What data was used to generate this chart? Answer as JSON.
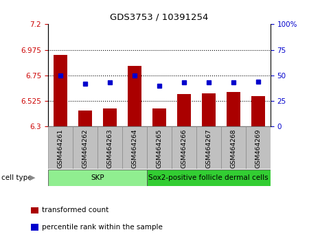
{
  "title": "GDS3753 / 10391254",
  "samples": [
    "GSM464261",
    "GSM464262",
    "GSM464263",
    "GSM464264",
    "GSM464265",
    "GSM464266",
    "GSM464267",
    "GSM464268",
    "GSM464269"
  ],
  "bar_values": [
    6.93,
    6.44,
    6.46,
    6.835,
    6.455,
    6.585,
    6.59,
    6.605,
    6.565
  ],
  "percentile_values": [
    50,
    42,
    43,
    50,
    40,
    43,
    43,
    43,
    44
  ],
  "left_ylim": [
    6.3,
    7.2
  ],
  "left_yticks": [
    6.3,
    6.525,
    6.75,
    6.975,
    7.2
  ],
  "left_ytick_labels": [
    "6.3",
    "6.525",
    "6.75",
    "6.975",
    "7.2"
  ],
  "right_ylim": [
    0,
    100
  ],
  "right_yticks": [
    0,
    25,
    50,
    75,
    100
  ],
  "right_ytick_labels": [
    "0",
    "25",
    "50",
    "75",
    "100%"
  ],
  "hline_values": [
    6.525,
    6.75,
    6.975
  ],
  "bar_color": "#AA0000",
  "dot_color": "#0000CC",
  "cell_groups": [
    {
      "label": "SKP",
      "start": 0,
      "end": 4,
      "color": "#90EE90"
    },
    {
      "label": "Sox2-positive follicle dermal cells",
      "start": 4,
      "end": 9,
      "color": "#32CD32"
    }
  ],
  "cell_type_label": "cell type",
  "legend_bar_label": "transformed count",
  "legend_dot_label": "percentile rank within the sample",
  "tick_color_left": "#CC0000",
  "tick_color_right": "#0000CC",
  "xlabel_box_color": "#C0C0C0",
  "xlabel_box_edgecolor": "#888888"
}
